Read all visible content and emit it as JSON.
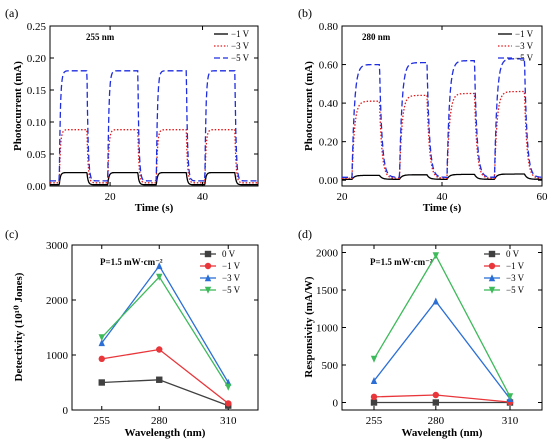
{
  "chart_data": [
    {
      "panel_label": "(a)",
      "type": "line",
      "annotation": "255 nm",
      "xlabel": "Time (s)",
      "ylabel": "Photocurrent (mA)",
      "xlim": [
        7,
        52
      ],
      "ylim": [
        0,
        0.25
      ],
      "xticks": [
        "20",
        "40"
      ],
      "xtick_values": [
        20,
        40
      ],
      "yticks": [
        "0.00",
        "0.05",
        "0.10",
        "0.15",
        "0.20",
        "0.25"
      ],
      "ytick_values": [
        0,
        0.05,
        0.1,
        0.15,
        0.2,
        0.25
      ],
      "pulses": [
        [
          9,
          15
        ],
        [
          19.5,
          26
        ],
        [
          30,
          36.5
        ],
        [
          40.5,
          47
        ]
      ],
      "series": [
        {
          "name": "−1 V",
          "color": "#000000",
          "dash": "solid",
          "on": 0.021,
          "off": 0.002
        },
        {
          "name": "−3 V",
          "color": "#e31a1c",
          "dash": "dotted",
          "on": 0.088,
          "off": 0.005
        },
        {
          "name": "−5 V",
          "color": "#1f2de0",
          "dash": "dashed",
          "on": 0.18,
          "off": 0.008
        }
      ]
    },
    {
      "panel_label": "(b)",
      "type": "line",
      "annotation": "280 nm",
      "xlabel": "Time (s)",
      "ylabel": "Photocurrent (mA)",
      "xlim": [
        20,
        60
      ],
      "ylim": [
        -0.03,
        0.8
      ],
      "xticks": [
        "20",
        "40",
        "60"
      ],
      "xtick_values": [
        20,
        40,
        60
      ],
      "yticks": [
        "0.00",
        "0.20",
        "0.40",
        "0.60",
        "0.80"
      ],
      "ytick_values": [
        0,
        0.2,
        0.4,
        0.6,
        0.8
      ],
      "pulses": [
        [
          22,
          27.5
        ],
        [
          31.5,
          37
        ],
        [
          41,
          46.5
        ],
        [
          50.5,
          56.5
        ]
      ],
      "series": [
        {
          "name": "−1 V",
          "color": "#000000",
          "dash": "solid",
          "on_levels": [
            0.025,
            0.028,
            0.03,
            0.032
          ],
          "off": 0.005
        },
        {
          "name": "−3 V",
          "color": "#e31a1c",
          "dash": "dotted",
          "on_levels": [
            0.41,
            0.44,
            0.45,
            0.46
          ],
          "off": 0.01
        },
        {
          "name": "−5 V",
          "color": "#1f2de0",
          "dash": "dashed",
          "on_levels": [
            0.6,
            0.61,
            0.62,
            0.63
          ],
          "off": 0.015
        }
      ]
    },
    {
      "panel_label": "(c)",
      "type": "line",
      "annotation": "P=1.5 mW·cm⁻²",
      "xlabel": "Wavelength (nm)",
      "ylabel": "Detectivity (10¹⁰ Jones)",
      "categories": [
        "255",
        "280",
        "310"
      ],
      "x_values": [
        255,
        280,
        310
      ],
      "ylim": [
        0,
        3000
      ],
      "yticks": [
        "0",
        "1000",
        "2000",
        "3000"
      ],
      "ytick_values": [
        0,
        1000,
        2000,
        3000
      ],
      "series": [
        {
          "name": "0 V",
          "color": "#404040",
          "marker": "square",
          "values": [
            500,
            550,
            80
          ]
        },
        {
          "name": "−1 V",
          "color": "#e8363a",
          "marker": "circle",
          "values": [
            930,
            1100,
            120
          ]
        },
        {
          "name": "−3 V",
          "color": "#2b6fd6",
          "marker": "triangle-up",
          "values": [
            1220,
            2620,
            500
          ]
        },
        {
          "name": "−5 V",
          "color": "#3dba5a",
          "marker": "triangle-down",
          "values": [
            1320,
            2420,
            420
          ]
        }
      ]
    },
    {
      "panel_label": "(d)",
      "type": "line",
      "annotation": "P=1.5 mW·cm⁻²",
      "xlabel": "Wavelength (nm)",
      "ylabel": "Responsivity (mA/W)",
      "categories": [
        "255",
        "280",
        "310"
      ],
      "x_values": [
        255,
        280,
        310
      ],
      "ylim": [
        -100,
        2100
      ],
      "yticks": [
        "0",
        "500",
        "1000",
        "1500",
        "2000"
      ],
      "ytick_values": [
        0,
        500,
        1000,
        1500,
        2000
      ],
      "series": [
        {
          "name": "0 V",
          "color": "#404040",
          "marker": "square",
          "values": [
            0,
            0,
            0
          ]
        },
        {
          "name": "−1 V",
          "color": "#e8363a",
          "marker": "circle",
          "values": [
            75,
            100,
            5
          ]
        },
        {
          "name": "−3 V",
          "color": "#2b6fd6",
          "marker": "triangle-up",
          "values": [
            290,
            1350,
            50
          ]
        },
        {
          "name": "−5 V",
          "color": "#3dba5a",
          "marker": "triangle-down",
          "values": [
            580,
            1960,
            80
          ]
        }
      ]
    }
  ]
}
